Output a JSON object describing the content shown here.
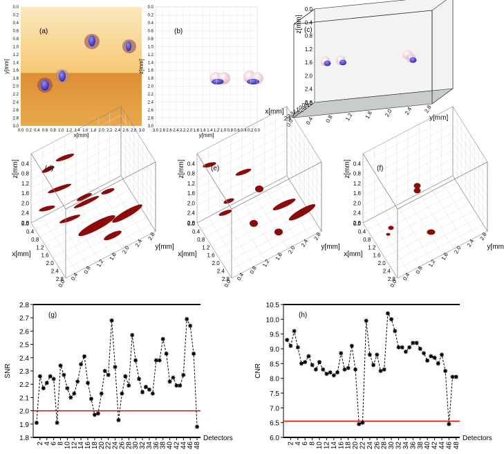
{
  "panels": {
    "a": {
      "label": "(a)",
      "xlabel": "x[mm]",
      "ylabel": "y[mm]",
      "xticks": [
        "0.0",
        "0.2",
        "0.4",
        "0.6",
        "0.8",
        "1.0",
        "1.2",
        "1.4",
        "1.6",
        "1.8",
        "2.0",
        "2.2",
        "2.4",
        "2.6",
        "2.8",
        "3.0"
      ],
      "yticks": [
        "0.0",
        "0.2",
        "0.4",
        "0.6",
        "0.8",
        "1.0",
        "1.2",
        "1.4",
        "1.6",
        "1.8",
        "2.0",
        "2.2",
        "2.4",
        "2.6",
        "2.8",
        "3.0"
      ]
    },
    "b": {
      "label": "(b)",
      "xlabel": "y[mm]",
      "ylabel": "z[mm]",
      "xticks": [
        "3.0",
        "2.8",
        "2.6",
        "2.4",
        "2.2",
        "2.0",
        "1.8",
        "1.6",
        "1.4",
        "1.2",
        "1.0",
        "0.8",
        "0.6",
        "0.4",
        "0.2",
        "0.0"
      ],
      "yticks": [
        "0.0",
        "0.2",
        "0.4",
        "0.6",
        "0.8",
        "1.0",
        "1.2",
        "1.4",
        "1.6",
        "1.8",
        "2.0",
        "2.2",
        "2.4",
        "2.6",
        "2.8",
        "3.0"
      ]
    },
    "c": {
      "label": "(c)",
      "zlabel": "z[mm]",
      "xlabel": "x[mm]",
      "ylabel": "y[mm]",
      "zticks": [
        "0.0",
        "0.4",
        "0.8",
        "1.2",
        "1.6",
        "2.0",
        "2.4",
        "2.8"
      ],
      "xticks": [
        "0.0",
        "0.4",
        "0.8",
        "1.2",
        "1.6",
        "2.0",
        "2.4",
        "2.8"
      ],
      "yticks": [
        "0.0",
        "0.4",
        "0.8",
        "1.2",
        "1.6",
        "2.0",
        "2.4",
        "2.8"
      ]
    },
    "d": {
      "label": "(d)",
      "zlabel": "z[mm]",
      "xlabel": "x[mm]",
      "ylabel": "y[mm]",
      "zticks": [
        "0.4",
        "0.8",
        "1.2",
        "1.6",
        "2.0",
        "2.4",
        "2.8"
      ],
      "xticks": [
        "0.0",
        "0.4",
        "0.8",
        "1.2",
        "1.6",
        "2.0",
        "2.4",
        "2.8"
      ],
      "yticks": [
        "0.0",
        "0.4",
        "0.8",
        "1.2",
        "1.6",
        "2.0",
        "2.4",
        "2.8"
      ]
    },
    "e": {
      "label": "(e)",
      "zlabel": "z[mm]",
      "xlabel": "x[mm]",
      "ylabel": "y[mm]",
      "zticks": [
        "0.4",
        "0.8",
        "1.2",
        "1.6",
        "2.0",
        "2.4",
        "2.8"
      ],
      "xticks": [
        "0.0",
        "0.4",
        "0.8",
        "1.2",
        "1.6",
        "2.0",
        "2.4",
        "2.8"
      ],
      "yticks": [
        "0.0",
        "0.4",
        "0.8",
        "1.2",
        "1.6",
        "2.0",
        "2.4",
        "2.8"
      ]
    },
    "f": {
      "label": "(f)",
      "zlabel": "z[mm]",
      "xlabel": "x[mm]",
      "ylabel": "y[mm]",
      "zticks": [
        "0.4",
        "0.8",
        "1.2",
        "1.6",
        "2.0",
        "2.4",
        "2.8"
      ],
      "xticks": [
        "0.0",
        "0.4",
        "0.8",
        "1.2",
        "1.6",
        "2.0",
        "2.4",
        "2.8"
      ],
      "yticks": [
        "0.0",
        "0.4",
        "0.8",
        "1.2",
        "1.6",
        "2.0",
        "2.4",
        "2.8"
      ]
    }
  },
  "chart_data": [
    {
      "type": "line",
      "label": "(g)",
      "ylabel": "SNR",
      "xlabel": "Detectors",
      "color": "#000000",
      "x": [
        1,
        2,
        3,
        4,
        5,
        6,
        7,
        8,
        9,
        10,
        11,
        12,
        13,
        14,
        15,
        16,
        17,
        18,
        19,
        20,
        21,
        22,
        23,
        24,
        25,
        26,
        27,
        28,
        29,
        30,
        31,
        32,
        33,
        34,
        35,
        36,
        37,
        38,
        39,
        40,
        41,
        42,
        43,
        44,
        45,
        46,
        47,
        48
      ],
      "values": [
        1.91,
        2.26,
        2.17,
        2.21,
        2.26,
        2.24,
        1.91,
        2.34,
        2.27,
        2.17,
        2.1,
        2.13,
        2.22,
        2.35,
        2.41,
        2.21,
        2.09,
        1.97,
        1.98,
        2.13,
        2.3,
        2.27,
        2.68,
        2.33,
        1.93,
        2.13,
        2.26,
        2.19,
        2.57,
        2.38,
        2.24,
        2.14,
        2.18,
        2.16,
        2.13,
        2.38,
        2.38,
        2.54,
        2.43,
        2.22,
        2.25,
        2.19,
        2.19,
        2.27,
        2.69,
        2.64,
        2.43,
        1.88
      ],
      "xlim": [
        0,
        49
      ],
      "xticks": [
        2,
        4,
        6,
        8,
        10,
        12,
        14,
        16,
        18,
        20,
        22,
        24,
        26,
        28,
        30,
        32,
        34,
        36,
        38,
        40,
        42,
        44,
        46,
        48
      ],
      "ylim": [
        1.8,
        2.8
      ],
      "yticks": [
        {
          "value": 1.8,
          "label": "1.8"
        },
        {
          "value": 1.9,
          "label": "1.9"
        },
        {
          "value": 2,
          "label": "2.0"
        },
        {
          "value": 2.1,
          "label": "2.1"
        },
        {
          "value": 2.2,
          "label": "2.2"
        },
        {
          "value": 2.3,
          "label": "2.3"
        },
        {
          "value": 2.4,
          "label": "2.4"
        },
        {
          "value": 2.5,
          "label": "2.5"
        },
        {
          "value": 2.6,
          "label": "2.6"
        },
        {
          "value": 2.7,
          "label": "2.7"
        },
        {
          "value": 2.8,
          "label": "2.8"
        }
      ],
      "hline": {
        "value": 2.0,
        "color": "#e00000"
      }
    },
    {
      "type": "line",
      "label": "(h)",
      "ylabel": "CNR",
      "xlabel": "Detectors",
      "color": "#000000",
      "x": [
        1,
        2,
        3,
        4,
        5,
        6,
        7,
        8,
        9,
        10,
        11,
        12,
        13,
        14,
        15,
        16,
        17,
        18,
        19,
        20,
        21,
        22,
        23,
        24,
        25,
        26,
        27,
        28,
        29,
        30,
        31,
        32,
        33,
        34,
        35,
        36,
        37,
        38,
        39,
        40,
        41,
        42,
        43,
        44,
        45,
        46,
        47,
        48
      ],
      "values": [
        9.3,
        9.1,
        9.6,
        9.05,
        8.5,
        8.55,
        8.75,
        8.45,
        8.3,
        8.55,
        8.3,
        8.15,
        8.2,
        8.1,
        8.2,
        8.85,
        8.3,
        8.35,
        9.1,
        8.3,
        6.45,
        6.5,
        9.95,
        8.8,
        8.45,
        8.8,
        8.25,
        8.3,
        10.2,
        10.0,
        9.6,
        9.05,
        9.05,
        8.9,
        9.05,
        9.2,
        9.2,
        9.0,
        8.85,
        8.6,
        8.75,
        8.7,
        8.5,
        8.8,
        8.25,
        6.45,
        8.05,
        8.05
      ],
      "xlim": [
        0,
        49
      ],
      "xticks": [
        2,
        4,
        6,
        8,
        10,
        12,
        14,
        16,
        18,
        20,
        22,
        24,
        26,
        28,
        30,
        32,
        34,
        36,
        38,
        40,
        42,
        44,
        46,
        48
      ],
      "ylim": [
        6.0,
        10.5
      ],
      "yticks": [
        {
          "value": 6,
          "label": "6.0"
        },
        {
          "value": 6.5,
          "label": "6.5"
        },
        {
          "value": 7,
          "label": "7.0"
        },
        {
          "value": 7.5,
          "label": "7.5"
        },
        {
          "value": 8,
          "label": "8.0"
        },
        {
          "value": 8.5,
          "label": "8.5"
        },
        {
          "value": 9,
          "label": "9.0"
        },
        {
          "value": 9.5,
          "label": "9.5"
        },
        {
          "value": 10,
          "label": "10.0"
        },
        {
          "value": 10.5,
          "label": "10.5"
        }
      ],
      "hline": {
        "value": 6.55,
        "color": "#e00000"
      }
    }
  ]
}
